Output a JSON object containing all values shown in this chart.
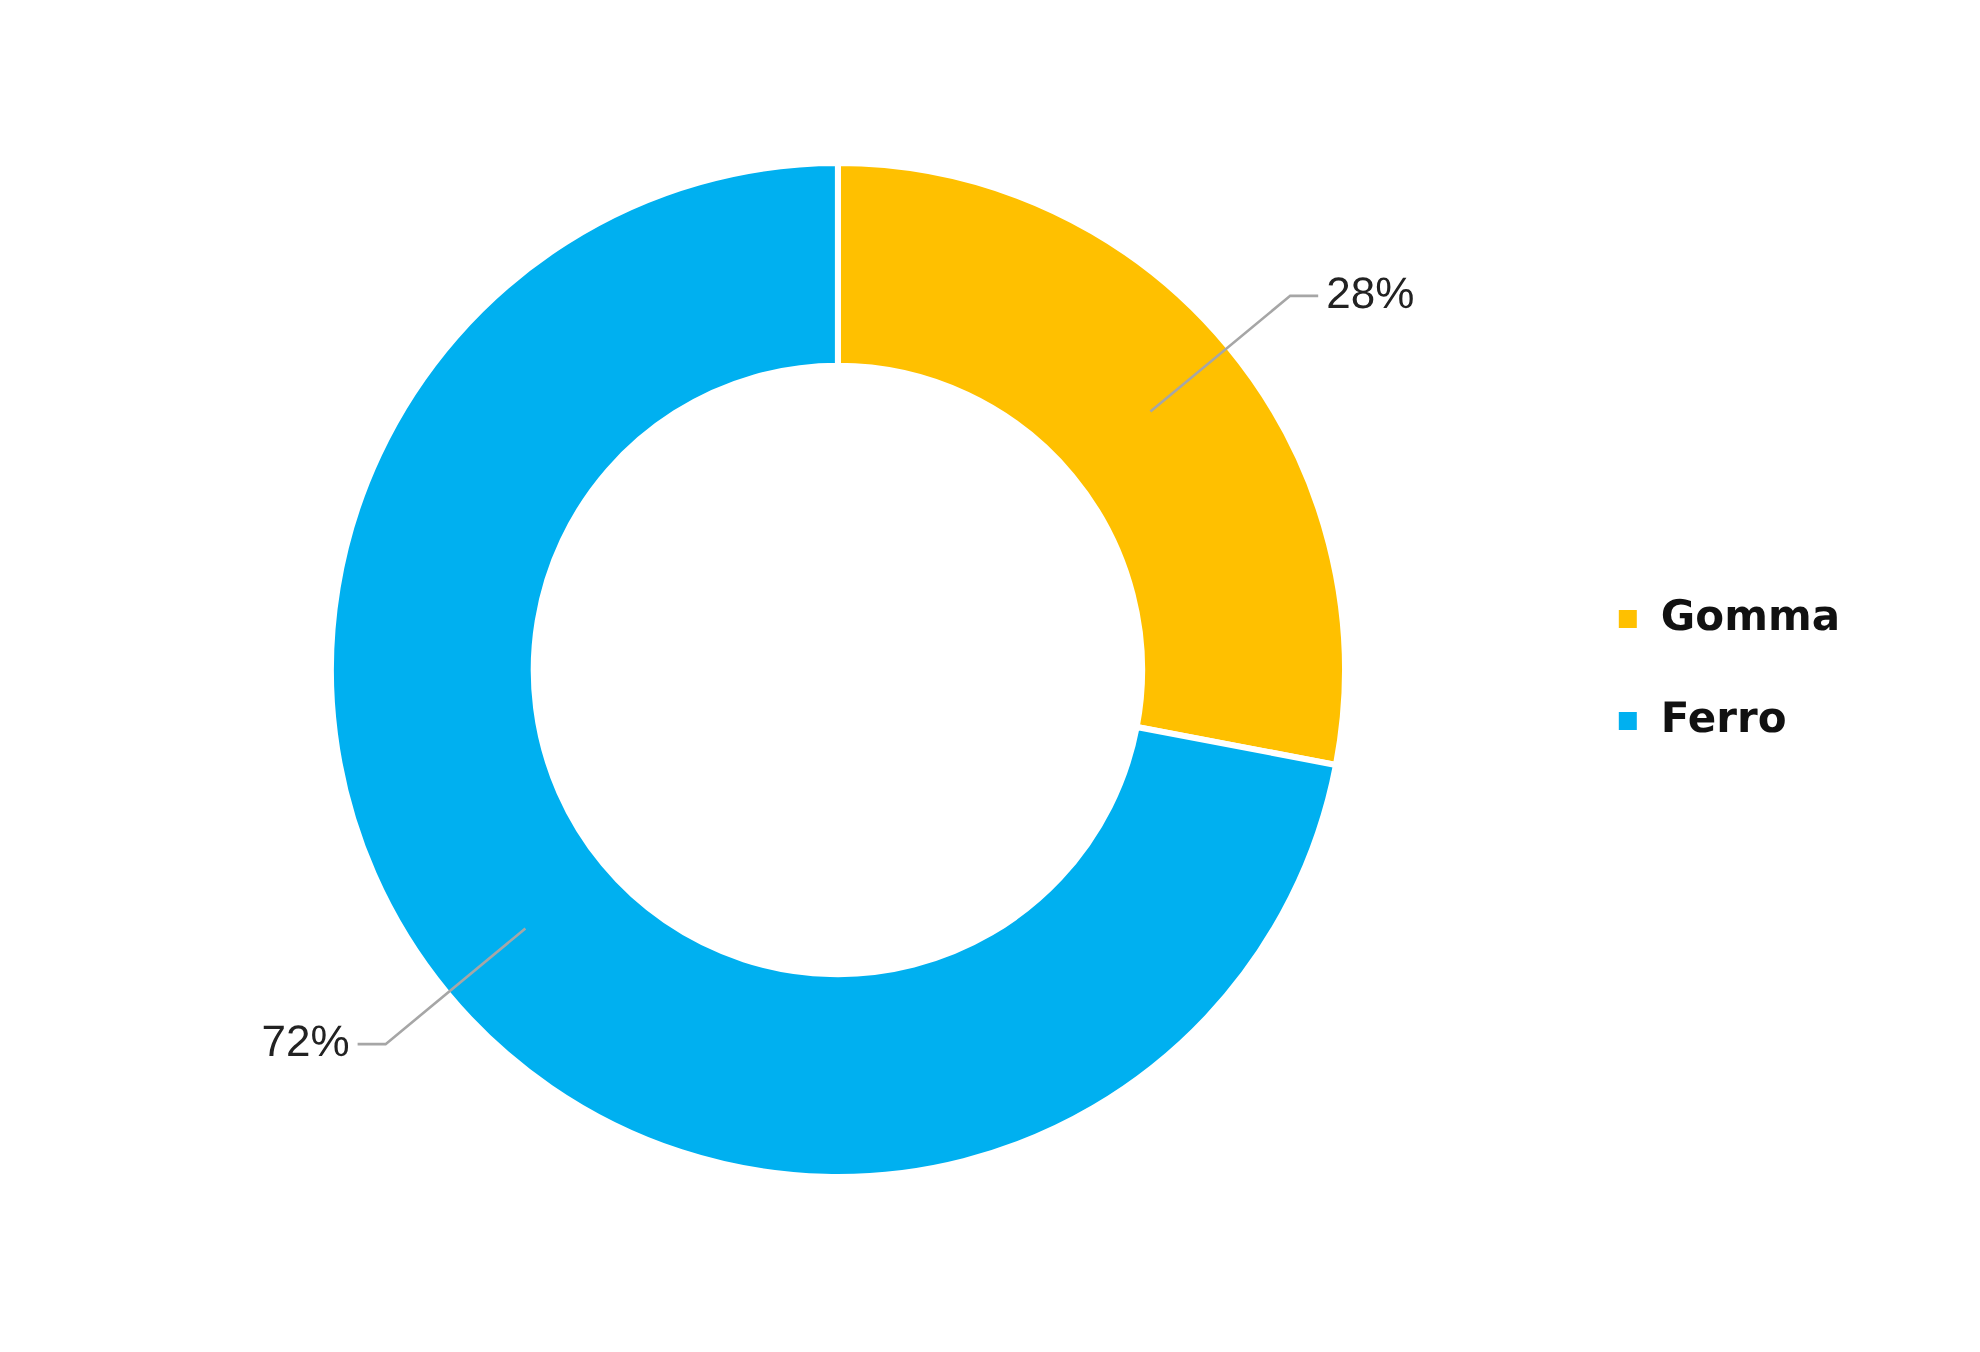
{
  "chart_data": {
    "type": "donut",
    "categories": [
      "Gomma",
      "Ferro"
    ],
    "values": [
      28,
      72
    ],
    "colors": [
      "#ffc000",
      "#00b0f0"
    ],
    "value_labels": [
      "28%",
      "72%"
    ],
    "legend": "right"
  }
}
